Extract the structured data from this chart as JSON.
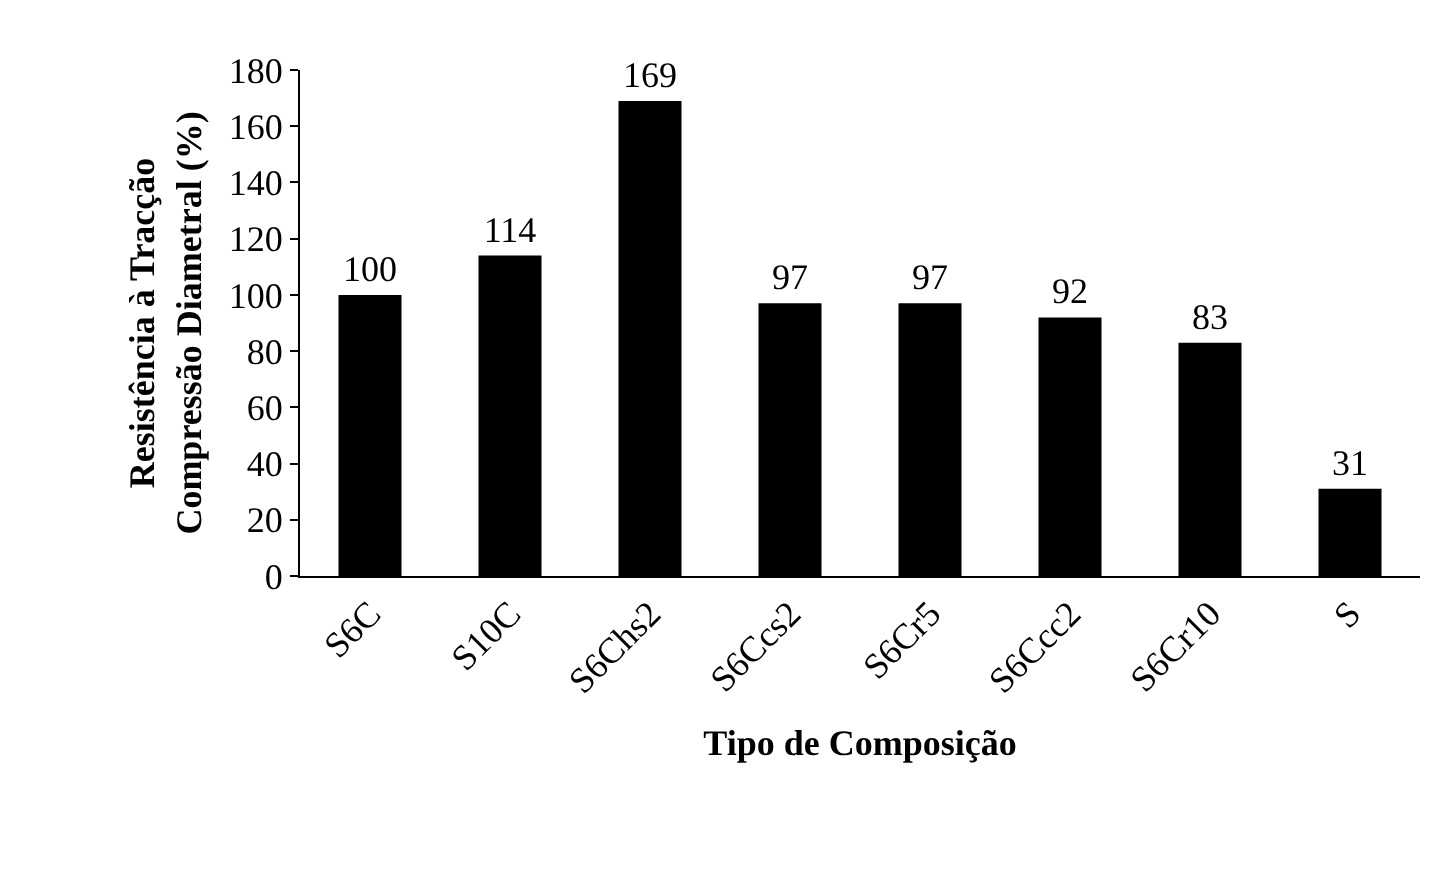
{
  "chart_data": {
    "type": "bar",
    "xlabel": "Tipo de Composição",
    "ylabel": "Resistência à Tracção\nCompressão Diametral (%)",
    "categories": [
      "S6C",
      "S10C",
      "S6Chs2",
      "S6Ccs2",
      "S6Cr5",
      "S6Ccc2",
      "S6Cr10",
      "S"
    ],
    "values": [
      100,
      114,
      169,
      97,
      97,
      92,
      83,
      31
    ],
    "color": "#000000",
    "ylim": [
      0,
      180
    ],
    "yticks": [
      0,
      20,
      40,
      60,
      80,
      100,
      120,
      140,
      160,
      180
    ],
    "data_labels": true,
    "legend": false
  }
}
